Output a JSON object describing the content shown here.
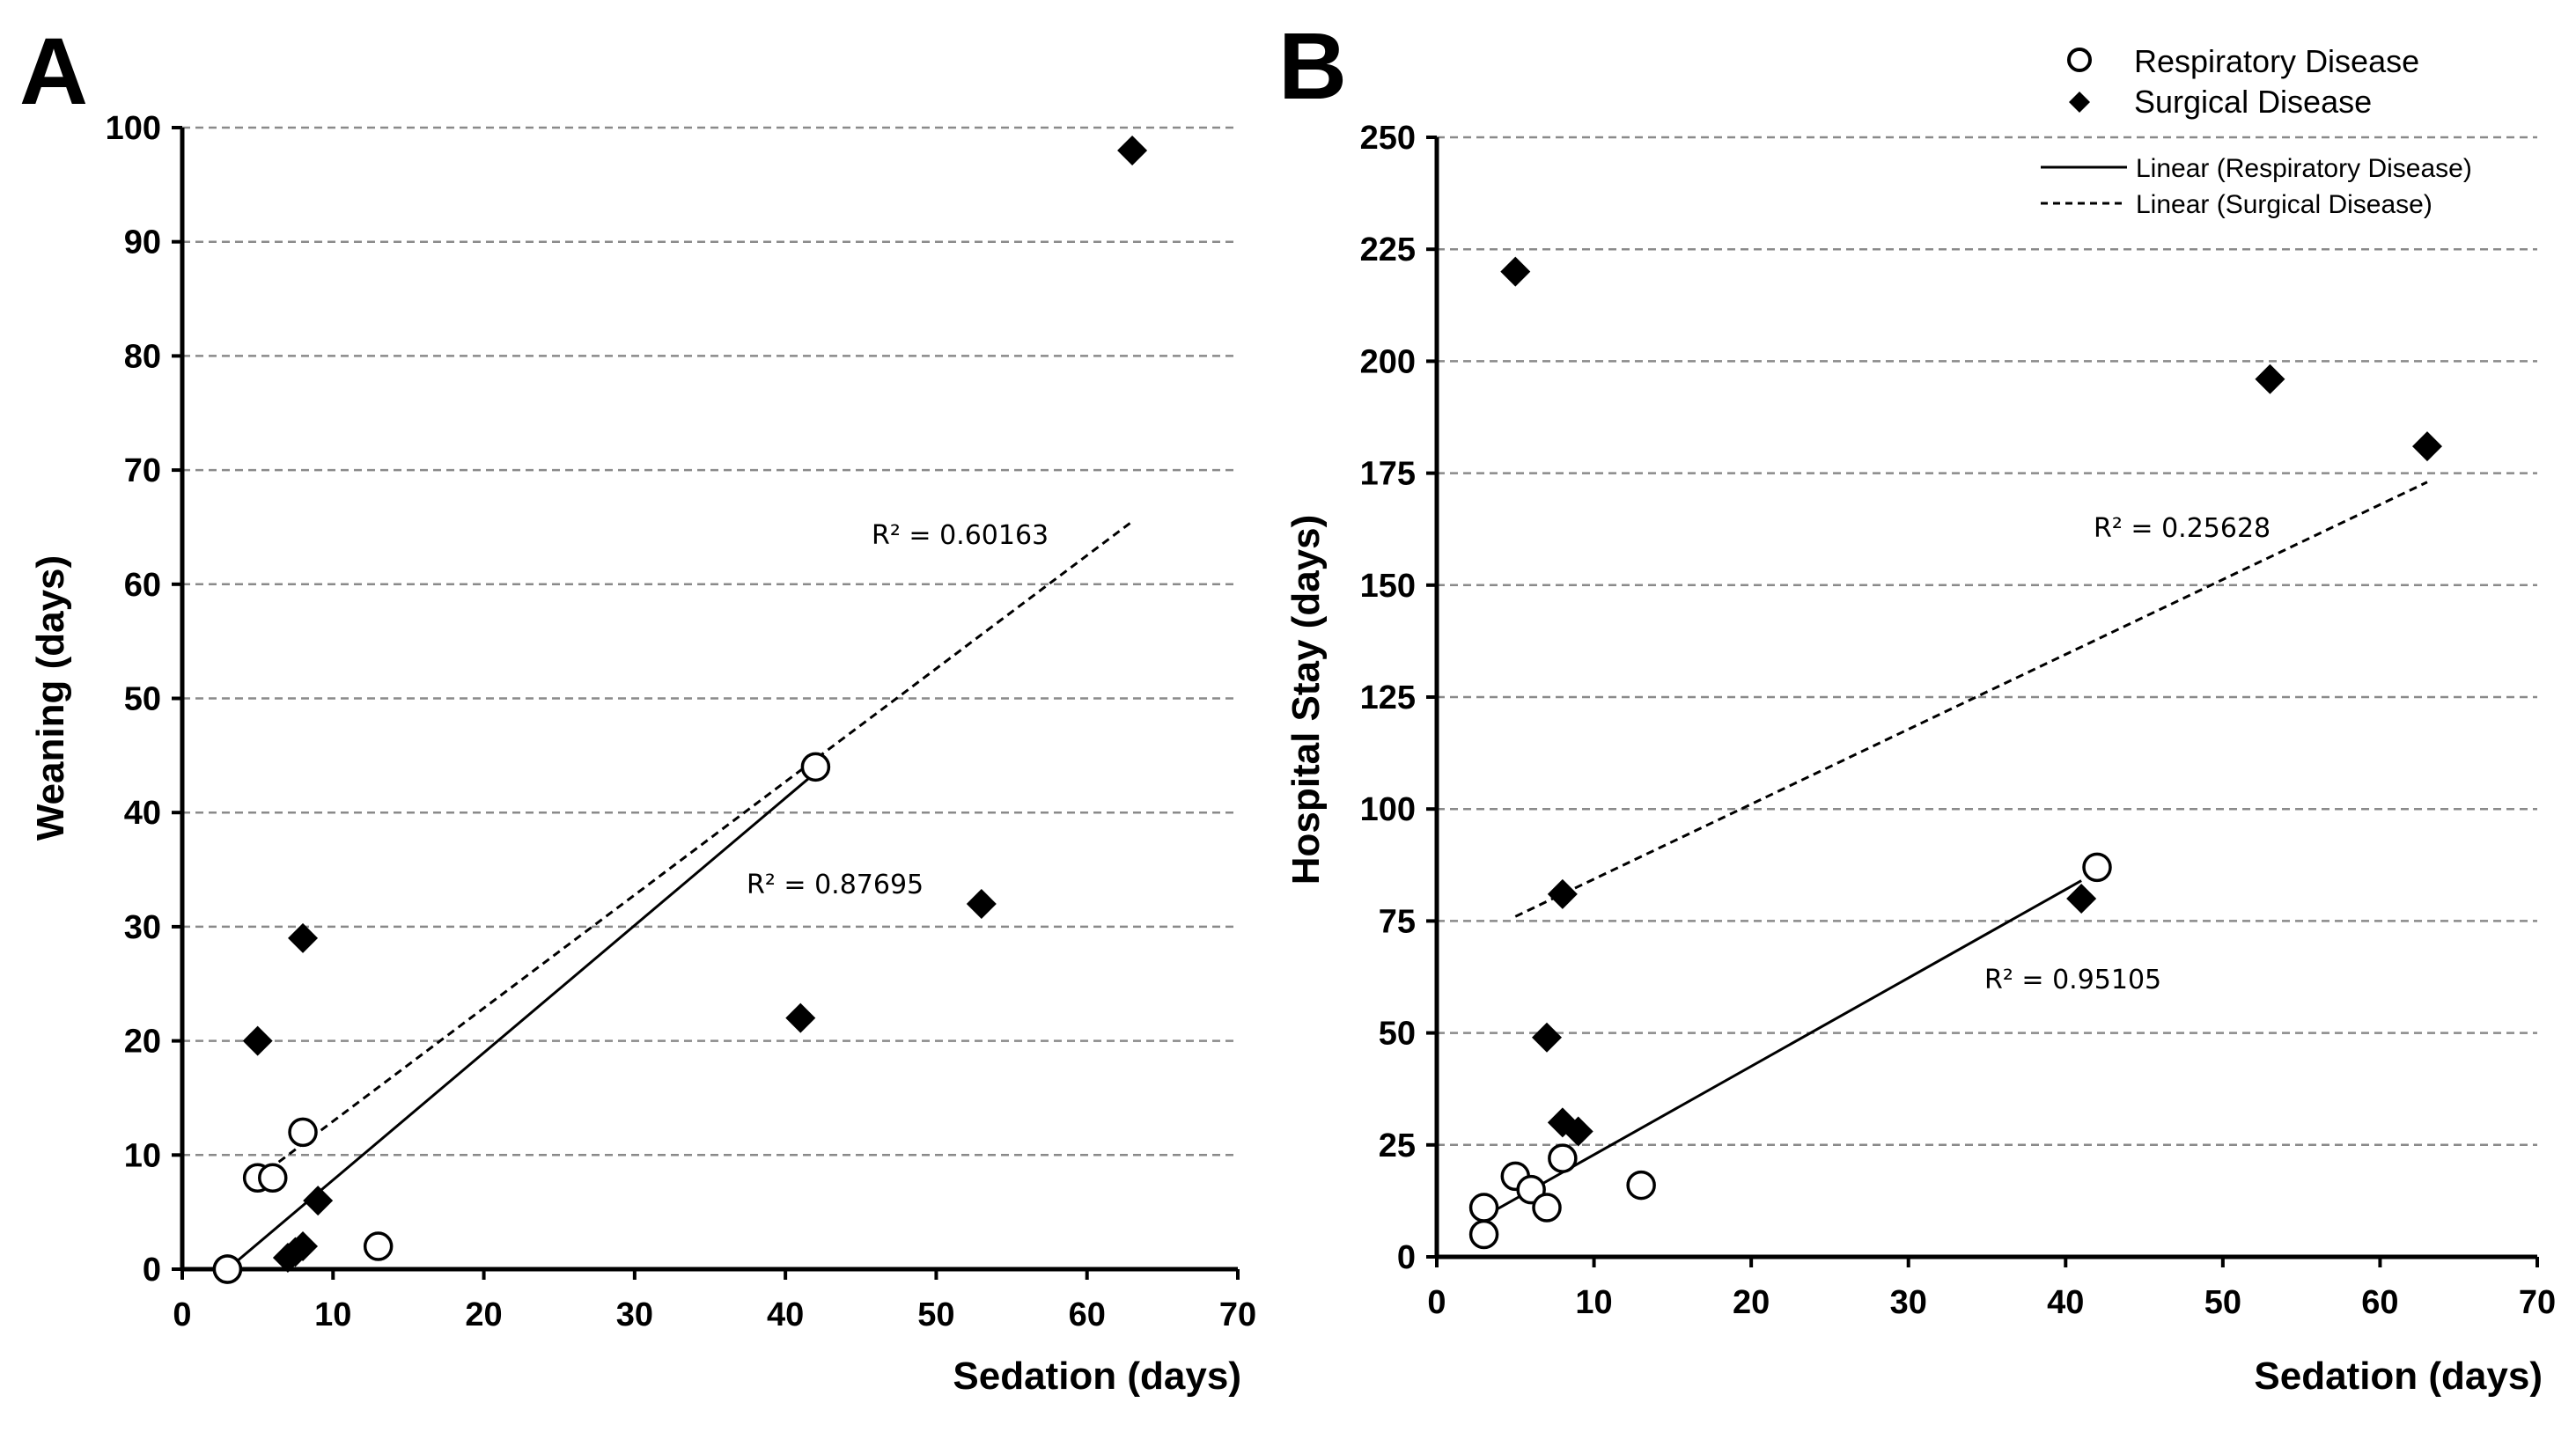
{
  "chart_data": [
    {
      "type": "scatter",
      "panel": "A",
      "title": "",
      "xlabel": "Sedation (days)",
      "ylabel": "Weaning (days)",
      "xlim": [
        0,
        70
      ],
      "ylim": [
        0,
        100
      ],
      "xticks": [
        0,
        10,
        20,
        30,
        40,
        50,
        60,
        70
      ],
      "yticks": [
        0,
        10,
        20,
        30,
        40,
        50,
        60,
        70,
        80,
        90,
        100
      ],
      "grid": "horizontal dashed",
      "series": [
        {
          "name": "Respiratory Disease",
          "marker": "open-circle",
          "points": [
            [
              3,
              0
            ],
            [
              3,
              0
            ],
            [
              5,
              8
            ],
            [
              6,
              8
            ],
            [
              8,
              12
            ],
            [
              13,
              2
            ],
            [
              42,
              44
            ]
          ],
          "trendline": {
            "style": "solid",
            "from": [
              3,
              0
            ],
            "to": [
              42,
              43.5
            ]
          },
          "r2_label": "R² = 0.87695"
        },
        {
          "name": "Surgical Disease",
          "marker": "filled-diamond",
          "points": [
            [
              5,
              20
            ],
            [
              7,
              1
            ],
            [
              7.5,
              1.5
            ],
            [
              8,
              2
            ],
            [
              8,
              29
            ],
            [
              9,
              6
            ],
            [
              41,
              22
            ],
            [
              53,
              32
            ],
            [
              63,
              98
            ]
          ],
          "trendline": {
            "style": "dashed",
            "from": [
              5,
              8
            ],
            "to": [
              63,
              65.5
            ]
          },
          "r2_label": "R² = 0.60163"
        }
      ]
    },
    {
      "type": "scatter",
      "panel": "B",
      "title": "",
      "xlabel": "Sedation (days)",
      "ylabel": "Hospital Stay (days)",
      "xlim": [
        0,
        70
      ],
      "ylim": [
        0,
        250
      ],
      "xticks": [
        0,
        10,
        20,
        30,
        40,
        50,
        60,
        70
      ],
      "yticks": [
        0,
        25,
        50,
        75,
        100,
        125,
        150,
        175,
        200,
        225,
        250
      ],
      "grid": "horizontal dashed",
      "legend": {
        "position": "top-right",
        "entries": [
          "Respiratory Disease",
          "Surgical Disease",
          "Linear (Respiratory Disease)",
          "Linear (Surgical Disease)"
        ]
      },
      "series": [
        {
          "name": "Respiratory Disease",
          "marker": "open-circle",
          "points": [
            [
              3,
              5
            ],
            [
              3,
              11
            ],
            [
              5,
              18
            ],
            [
              6,
              15
            ],
            [
              7,
              11
            ],
            [
              8,
              22
            ],
            [
              13,
              16
            ],
            [
              42,
              87
            ]
          ],
          "trendline": {
            "style": "solid",
            "from": [
              3,
              9
            ],
            "to": [
              41,
              84
            ]
          },
          "r2_label": "R² = 0.95105"
        },
        {
          "name": "Surgical Disease",
          "marker": "filled-diamond",
          "points": [
            [
              5,
              220
            ],
            [
              7,
              49
            ],
            [
              8,
              81
            ],
            [
              8,
              30
            ],
            [
              9,
              28
            ],
            [
              41,
              80
            ],
            [
              53,
              196
            ],
            [
              63,
              181
            ]
          ],
          "trendline": {
            "style": "dashed",
            "from": [
              5,
              76
            ],
            "to": [
              63,
              173
            ]
          },
          "r2_label": "R² = 0.25628"
        }
      ]
    }
  ]
}
